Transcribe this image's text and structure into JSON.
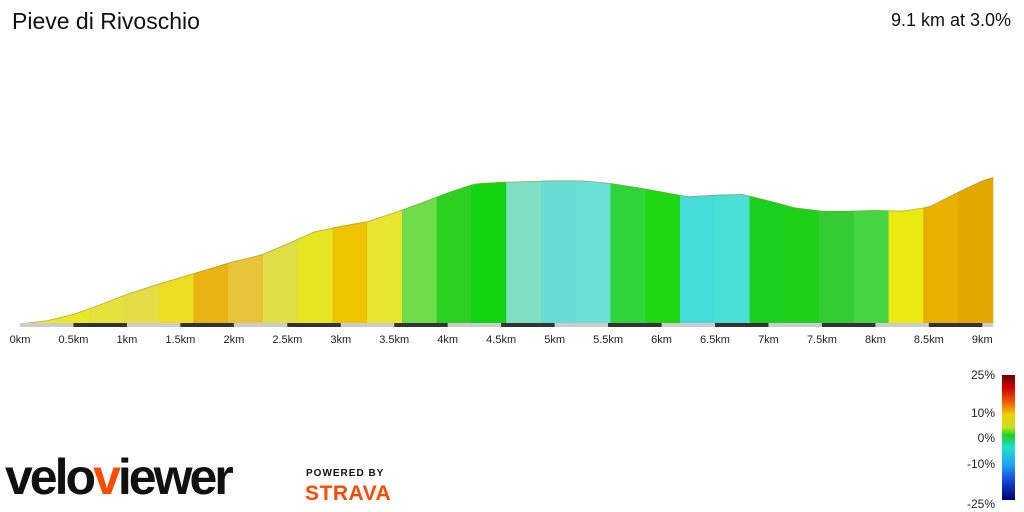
{
  "header": {
    "segment_name": "Pieve di Rivoschio",
    "summary": "9.1 km at 3.0%"
  },
  "chart_data": {
    "type": "area",
    "title": "Pieve di Rivoschio",
    "xlabel": "",
    "ylabel": "",
    "x_unit": "km",
    "xlim": [
      0,
      9.1
    ],
    "x_ticks": [
      "0km",
      "0.5km",
      "1km",
      "1.5km",
      "2km",
      "2.5km",
      "3km",
      "3.5km",
      "4km",
      "4.5km",
      "5km",
      "5.5km",
      "6km",
      "6.5km",
      "7km",
      "7.5km",
      "8km",
      "8.5km",
      "9km"
    ],
    "profile": [
      {
        "x": 0.0,
        "y": 0
      },
      {
        "x": 0.25,
        "y": 4
      },
      {
        "x": 0.5,
        "y": 12
      },
      {
        "x": 0.75,
        "y": 24
      },
      {
        "x": 1.0,
        "y": 37
      },
      {
        "x": 1.25,
        "y": 48
      },
      {
        "x": 1.5,
        "y": 58
      },
      {
        "x": 1.75,
        "y": 68
      },
      {
        "x": 2.0,
        "y": 78
      },
      {
        "x": 2.25,
        "y": 86
      },
      {
        "x": 2.5,
        "y": 100
      },
      {
        "x": 2.75,
        "y": 115
      },
      {
        "x": 3.0,
        "y": 122
      },
      {
        "x": 3.25,
        "y": 128
      },
      {
        "x": 3.5,
        "y": 139
      },
      {
        "x": 3.75,
        "y": 151
      },
      {
        "x": 4.0,
        "y": 164
      },
      {
        "x": 4.25,
        "y": 175
      },
      {
        "x": 4.5,
        "y": 177
      },
      {
        "x": 4.75,
        "y": 178
      },
      {
        "x": 5.0,
        "y": 179
      },
      {
        "x": 5.25,
        "y": 179
      },
      {
        "x": 5.5,
        "y": 176
      },
      {
        "x": 5.75,
        "y": 171
      },
      {
        "x": 6.0,
        "y": 165
      },
      {
        "x": 6.25,
        "y": 159
      },
      {
        "x": 6.5,
        "y": 161
      },
      {
        "x": 6.75,
        "y": 162
      },
      {
        "x": 7.0,
        "y": 154
      },
      {
        "x": 7.25,
        "y": 145
      },
      {
        "x": 7.5,
        "y": 141
      },
      {
        "x": 7.75,
        "y": 141
      },
      {
        "x": 8.0,
        "y": 142
      },
      {
        "x": 8.25,
        "y": 141
      },
      {
        "x": 8.5,
        "y": 146
      },
      {
        "x": 8.75,
        "y": 163
      },
      {
        "x": 9.0,
        "y": 179
      },
      {
        "x": 9.1,
        "y": 183
      }
    ],
    "gradient_colors": [
      "#e6ea2a",
      "#e8ea28",
      "#e4e23c",
      "#e6dc46",
      "#ecdc22",
      "#e9b412",
      "#e9c43a",
      "#e0de46",
      "#e5e524",
      "#eec400",
      "#e8e430",
      "#6fdc48",
      "#2bd020",
      "#11d410",
      "#7ee0c0",
      "#66dcd4",
      "#6ae0d4",
      "#2fd43a",
      "#1fd614",
      "#44dcd8",
      "#4ae0d8",
      "#1ad01e",
      "#1ed01a",
      "#33cc33",
      "#44d444",
      "#eaea10",
      "#e8b000",
      "#e2a800"
    ],
    "legend": {
      "labels": [
        "25%",
        "10%",
        "0%",
        "-10%",
        "-25%"
      ]
    }
  }
}
